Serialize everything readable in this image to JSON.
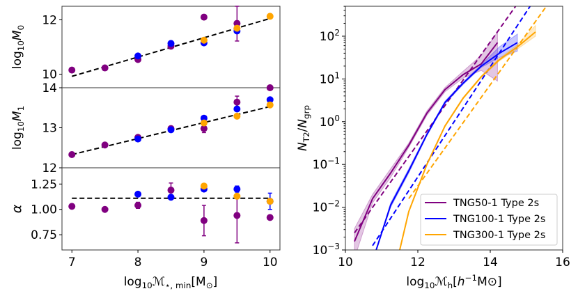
{
  "colors": {
    "TNG50": "#800080",
    "TNG100": "#0000ff",
    "TNG300": "#ffa500",
    "fit": "#000000"
  },
  "chart_data": [
    {
      "type": "scatter",
      "panel": "M0",
      "ylabel": "log10M0",
      "ylabel_parts": [
        "log",
        "10",
        "M",
        "0"
      ],
      "ylim": [
        9.5,
        12.5
      ],
      "yticks": [
        10,
        12
      ],
      "ytick_labels": [
        "10",
        "12"
      ],
      "xlim": [
        6.85,
        10.15
      ],
      "series": [
        {
          "name": "TNG50",
          "x": [
            7,
            7.5,
            8,
            8.5,
            9,
            9.5
          ],
          "y": [
            10.15,
            10.23,
            10.54,
            11.03,
            12.1,
            11.87
          ],
          "err": [
            0.03,
            0.03,
            0.05,
            0.08,
            0.09,
            0.65
          ]
        },
        {
          "name": "TNG100",
          "x": [
            8,
            8.5,
            9,
            9.5
          ],
          "y": [
            10.67,
            11.13,
            11.15,
            11.59
          ],
          "err": [
            0.03,
            0.04,
            0.04,
            0.05
          ]
        },
        {
          "name": "TNG300",
          "x": [
            9,
            9.5,
            10
          ],
          "y": [
            11.25,
            11.69,
            12.13
          ],
          "err": [
            0.03,
            0.03,
            0.02
          ]
        }
      ],
      "fit": {
        "x": [
          7,
          10
        ],
        "y": [
          9.92,
          12.05
        ]
      }
    },
    {
      "type": "scatter",
      "panel": "M1",
      "ylabel": "log10M1",
      "ylabel_parts": [
        "log",
        "10",
        "M",
        "1"
      ],
      "ylim": [
        12,
        14
      ],
      "yticks": [
        12,
        13,
        14
      ],
      "ytick_labels": [
        "12",
        "13",
        "14"
      ],
      "xlim": [
        6.85,
        10.15
      ],
      "series": [
        {
          "name": "TNG50",
          "x": [
            7,
            7.5,
            8,
            8.5,
            9,
            9.5,
            10
          ],
          "y": [
            12.33,
            12.57,
            12.76,
            12.98,
            12.98,
            13.64,
            14.0
          ],
          "err": [
            0.02,
            0.02,
            0.03,
            0.03,
            0.1,
            0.15,
            0.02
          ]
        },
        {
          "name": "TNG100",
          "x": [
            8,
            8.5,
            9,
            9.5,
            10
          ],
          "y": [
            12.72,
            12.95,
            13.24,
            13.47,
            13.7
          ],
          "err": [
            0.02,
            0.02,
            0.03,
            0.03,
            0.03
          ]
        },
        {
          "name": "TNG300",
          "x": [
            9,
            9.5,
            10
          ],
          "y": [
            13.12,
            13.29,
            13.57
          ],
          "err": [
            0.02,
            0.02,
            0.02
          ]
        }
      ],
      "fit": {
        "x": [
          7,
          10
        ],
        "y": [
          12.33,
          13.53
        ]
      }
    },
    {
      "type": "scatter",
      "panel": "alpha",
      "ylabel": "α",
      "ylim": [
        0.6,
        1.41
      ],
      "yticks": [
        0.75,
        1.0,
        1.25
      ],
      "ytick_labels": [
        "0.75",
        "1.00",
        "1.25"
      ],
      "xlim": [
        6.85,
        10.15
      ],
      "xticks": [
        7,
        8,
        9,
        10
      ],
      "xtick_labels": [
        "7",
        "8",
        "9",
        "10"
      ],
      "xlabel_parts": [
        "log",
        "10",
        "ℳ",
        "⋆, min",
        "[M",
        "⊙",
        "]"
      ],
      "series": [
        {
          "name": "TNG50",
          "x": [
            7,
            7.5,
            8,
            8.5,
            9,
            9.5,
            10
          ],
          "y": [
            1.03,
            1.0,
            1.04,
            1.19,
            0.89,
            0.94,
            0.92
          ],
          "err": [
            0.01,
            0.01,
            0.03,
            0.07,
            0.15,
            0.27,
            0.01
          ]
        },
        {
          "name": "TNG100",
          "x": [
            8,
            8.5,
            9,
            9.5,
            10
          ],
          "y": [
            1.15,
            1.12,
            1.2,
            1.2,
            1.08
          ],
          "err": [
            0.01,
            0.01,
            0.01,
            0.03,
            0.08
          ]
        },
        {
          "name": "TNG300",
          "x": [
            9,
            9.5,
            10
          ],
          "y": [
            1.23,
            1.13,
            1.08
          ],
          "err": [
            0.01,
            0.01,
            0.01
          ]
        }
      ],
      "fit": {
        "x": [
          7,
          10
        ],
        "y": [
          1.11,
          1.11
        ]
      }
    },
    {
      "type": "line",
      "panel": "ratio",
      "yscale": "log",
      "xlim": [
        10,
        16
      ],
      "xticks": [
        10,
        12,
        14,
        16
      ],
      "xtick_labels": [
        "10",
        "12",
        "14",
        "16"
      ],
      "ylim_log10": [
        -3,
        2.7
      ],
      "yticks_log10": [
        -3,
        -2,
        -1,
        0,
        1,
        2
      ],
      "ytick_exponents": [
        "−3",
        "−2",
        "−1",
        "0",
        "1",
        "2"
      ],
      "ytick_base": "10",
      "ylabel_parts": [
        "N",
        "T2",
        "/",
        "N",
        "grp"
      ],
      "xlabel_parts": [
        "log",
        "10",
        "ℳ",
        "h",
        "[",
        "h",
        "−1",
        "M",
        "⊙",
        "]"
      ],
      "legend": {
        "placement": "lower-right",
        "entries": [
          "TNG50-1 Type 2s",
          "TNG100-1 Type 2s",
          "TNG300-1 Type 2s"
        ]
      },
      "series": [
        {
          "name": "TNG50",
          "x": [
            10.25,
            10.75,
            11.25,
            11.75,
            12.25,
            12.75,
            13.25,
            13.75,
            14.2
          ],
          "log10y": [
            -2.8,
            -1.8,
            -1.2,
            -0.55,
            0.2,
            0.75,
            1.1,
            1.35,
            1.85
          ],
          "band_lo": [
            -3.2,
            -1.9,
            -1.3,
            -0.6,
            0.15,
            0.7,
            1.02,
            1.2,
            0.95
          ],
          "band_hi": [
            -2.5,
            -1.7,
            -1.1,
            -0.5,
            0.25,
            0.8,
            1.18,
            1.55,
            2.1
          ],
          "fit_x": [
            10.25,
            14.7
          ],
          "fit_log10y": [
            -2.6,
            2.7
          ]
        },
        {
          "name": "TNG100",
          "x": [
            10.85,
            11.25,
            11.75,
            12.25,
            12.75,
            13.25,
            13.75,
            14.25,
            14.75
          ],
          "log10y": [
            -3.0,
            -1.95,
            -1.15,
            -0.3,
            0.45,
            0.9,
            1.3,
            1.6,
            1.85
          ],
          "band_lo": [
            -3.0,
            -2.0,
            -1.2,
            -0.33,
            0.42,
            0.87,
            1.27,
            1.5,
            1.65
          ],
          "band_hi": [
            -3.0,
            -1.9,
            -1.1,
            -0.27,
            0.48,
            0.93,
            1.33,
            1.75,
            2.05
          ],
          "fit_x": [
            10.75,
            15.1
          ],
          "fit_log10y": [
            -2.9,
            2.7
          ]
        },
        {
          "name": "TNG300",
          "x": [
            11.5,
            11.75,
            12.25,
            12.75,
            13.25,
            13.75,
            14.25,
            14.75,
            15.25
          ],
          "log10y": [
            -3.0,
            -2.1,
            -1.0,
            -0.1,
            0.55,
            1.05,
            1.45,
            1.75,
            2.1
          ],
          "band_lo": [
            -3.0,
            -2.1,
            -1.02,
            -0.12,
            0.53,
            1.03,
            1.42,
            1.7,
            2.0
          ],
          "band_hi": [
            -3.0,
            -2.1,
            -0.98,
            -0.08,
            0.57,
            1.07,
            1.48,
            1.8,
            2.25
          ],
          "fit_x": [
            11.75,
            15.55
          ],
          "fit_log10y": [
            -1.8,
            2.7
          ]
        }
      ]
    }
  ]
}
